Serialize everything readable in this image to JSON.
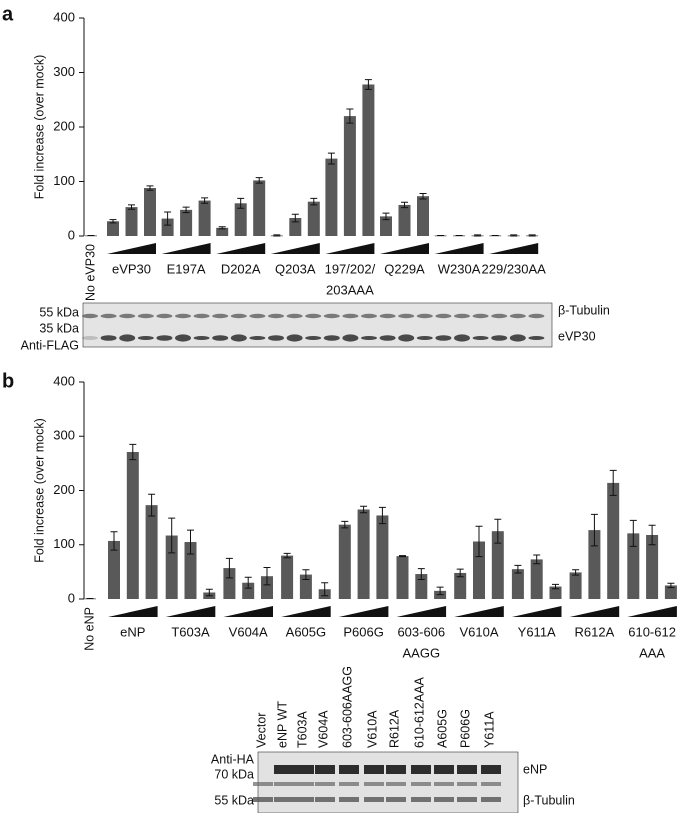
{
  "chart_data": [
    {
      "type": "bar",
      "panel_label": "a",
      "ylabel": "Fold increase (over mock)",
      "color": "#595959",
      "ylim": [
        0,
        400
      ],
      "yticks": [
        0,
        100,
        200,
        300,
        400
      ],
      "control": {
        "label": "No eVP30",
        "value": 1,
        "error": 0
      },
      "groups": [
        {
          "label": [
            "eVP30"
          ],
          "values": [
            27,
            53,
            88
          ],
          "errors": [
            3,
            4,
            4
          ]
        },
        {
          "label": [
            "E197A"
          ],
          "values": [
            32,
            48,
            65
          ],
          "errors": [
            12,
            5,
            5
          ]
        },
        {
          "label": [
            "D202A"
          ],
          "values": [
            15,
            60,
            102
          ],
          "errors": [
            2,
            9,
            5
          ]
        },
        {
          "label": [
            "Q203A"
          ],
          "values": [
            1,
            33,
            63
          ],
          "errors": [
            1,
            7,
            6
          ]
        },
        {
          "label": [
            "197/202/",
            "203AAA"
          ],
          "values": [
            142,
            220,
            278
          ],
          "errors": [
            10,
            13,
            9
          ]
        },
        {
          "label": [
            "Q229A"
          ],
          "values": [
            36,
            57,
            73
          ],
          "errors": [
            6,
            5,
            5
          ]
        },
        {
          "label": [
            "W230A"
          ],
          "values": [
            1,
            1,
            1
          ],
          "errors": [
            0,
            0,
            1
          ]
        },
        {
          "label": [
            "229/230AA"
          ],
          "values": [
            1,
            1,
            1
          ],
          "errors": [
            0,
            1,
            1
          ]
        }
      ]
    },
    {
      "type": "bar",
      "panel_label": "b",
      "ylabel": "Fold increase (over mock)",
      "color": "#595959",
      "ylim": [
        0,
        400
      ],
      "yticks": [
        0,
        100,
        200,
        300,
        400
      ],
      "control": {
        "label": "No eNP",
        "value": 1,
        "error": 0
      },
      "groups": [
        {
          "label": [
            "eNP"
          ],
          "values": [
            107,
            271,
            173
          ],
          "errors": [
            17,
            14,
            20
          ]
        },
        {
          "label": [
            "T603A"
          ],
          "values": [
            117,
            105,
            12
          ],
          "errors": [
            32,
            22,
            6
          ]
        },
        {
          "label": [
            "V604A"
          ],
          "values": [
            57,
            30,
            42
          ],
          "errors": [
            18,
            10,
            16
          ]
        },
        {
          "label": [
            "A605G"
          ],
          "values": [
            80,
            45,
            18
          ],
          "errors": [
            4,
            9,
            12
          ]
        },
        {
          "label": [
            "P606G"
          ],
          "values": [
            137,
            165,
            154
          ],
          "errors": [
            6,
            6,
            15
          ]
        },
        {
          "label": [
            "603-606",
            "AAGG"
          ],
          "values": [
            79,
            46,
            15
          ],
          "errors": [
            1,
            10,
            7
          ]
        },
        {
          "label": [
            "V610A"
          ],
          "values": [
            48,
            106,
            125
          ],
          "errors": [
            7,
            28,
            22
          ]
        },
        {
          "label": [
            "Y611A"
          ],
          "values": [
            55,
            73,
            23
          ],
          "errors": [
            7,
            8,
            4
          ]
        },
        {
          "label": [
            "R612A"
          ],
          "values": [
            49,
            127,
            214
          ],
          "errors": [
            5,
            29,
            23
          ]
        },
        {
          "label": [
            "610-612",
            "AAA"
          ],
          "values": [
            121,
            118,
            25
          ],
          "errors": [
            24,
            18,
            4
          ]
        }
      ]
    }
  ],
  "blots": [
    {
      "left_labels": [
        "55 kDa",
        "35 kDa",
        "Anti-FLAG"
      ],
      "right_labels": [
        "β-Tubulin",
        "eVP30"
      ]
    },
    {
      "lane_labels": [
        "Vector",
        "eNP WT",
        "T603A",
        "V604A",
        "603-606AAGG",
        "V610A",
        "R612A",
        "610-612AAA",
        "A605G",
        "P606G",
        "Y611A"
      ],
      "left_labels": [
        "Anti-HA",
        "70 kDa",
        "55 kDa"
      ],
      "right_labels": [
        "eNP",
        "β-Tubulin"
      ]
    }
  ]
}
